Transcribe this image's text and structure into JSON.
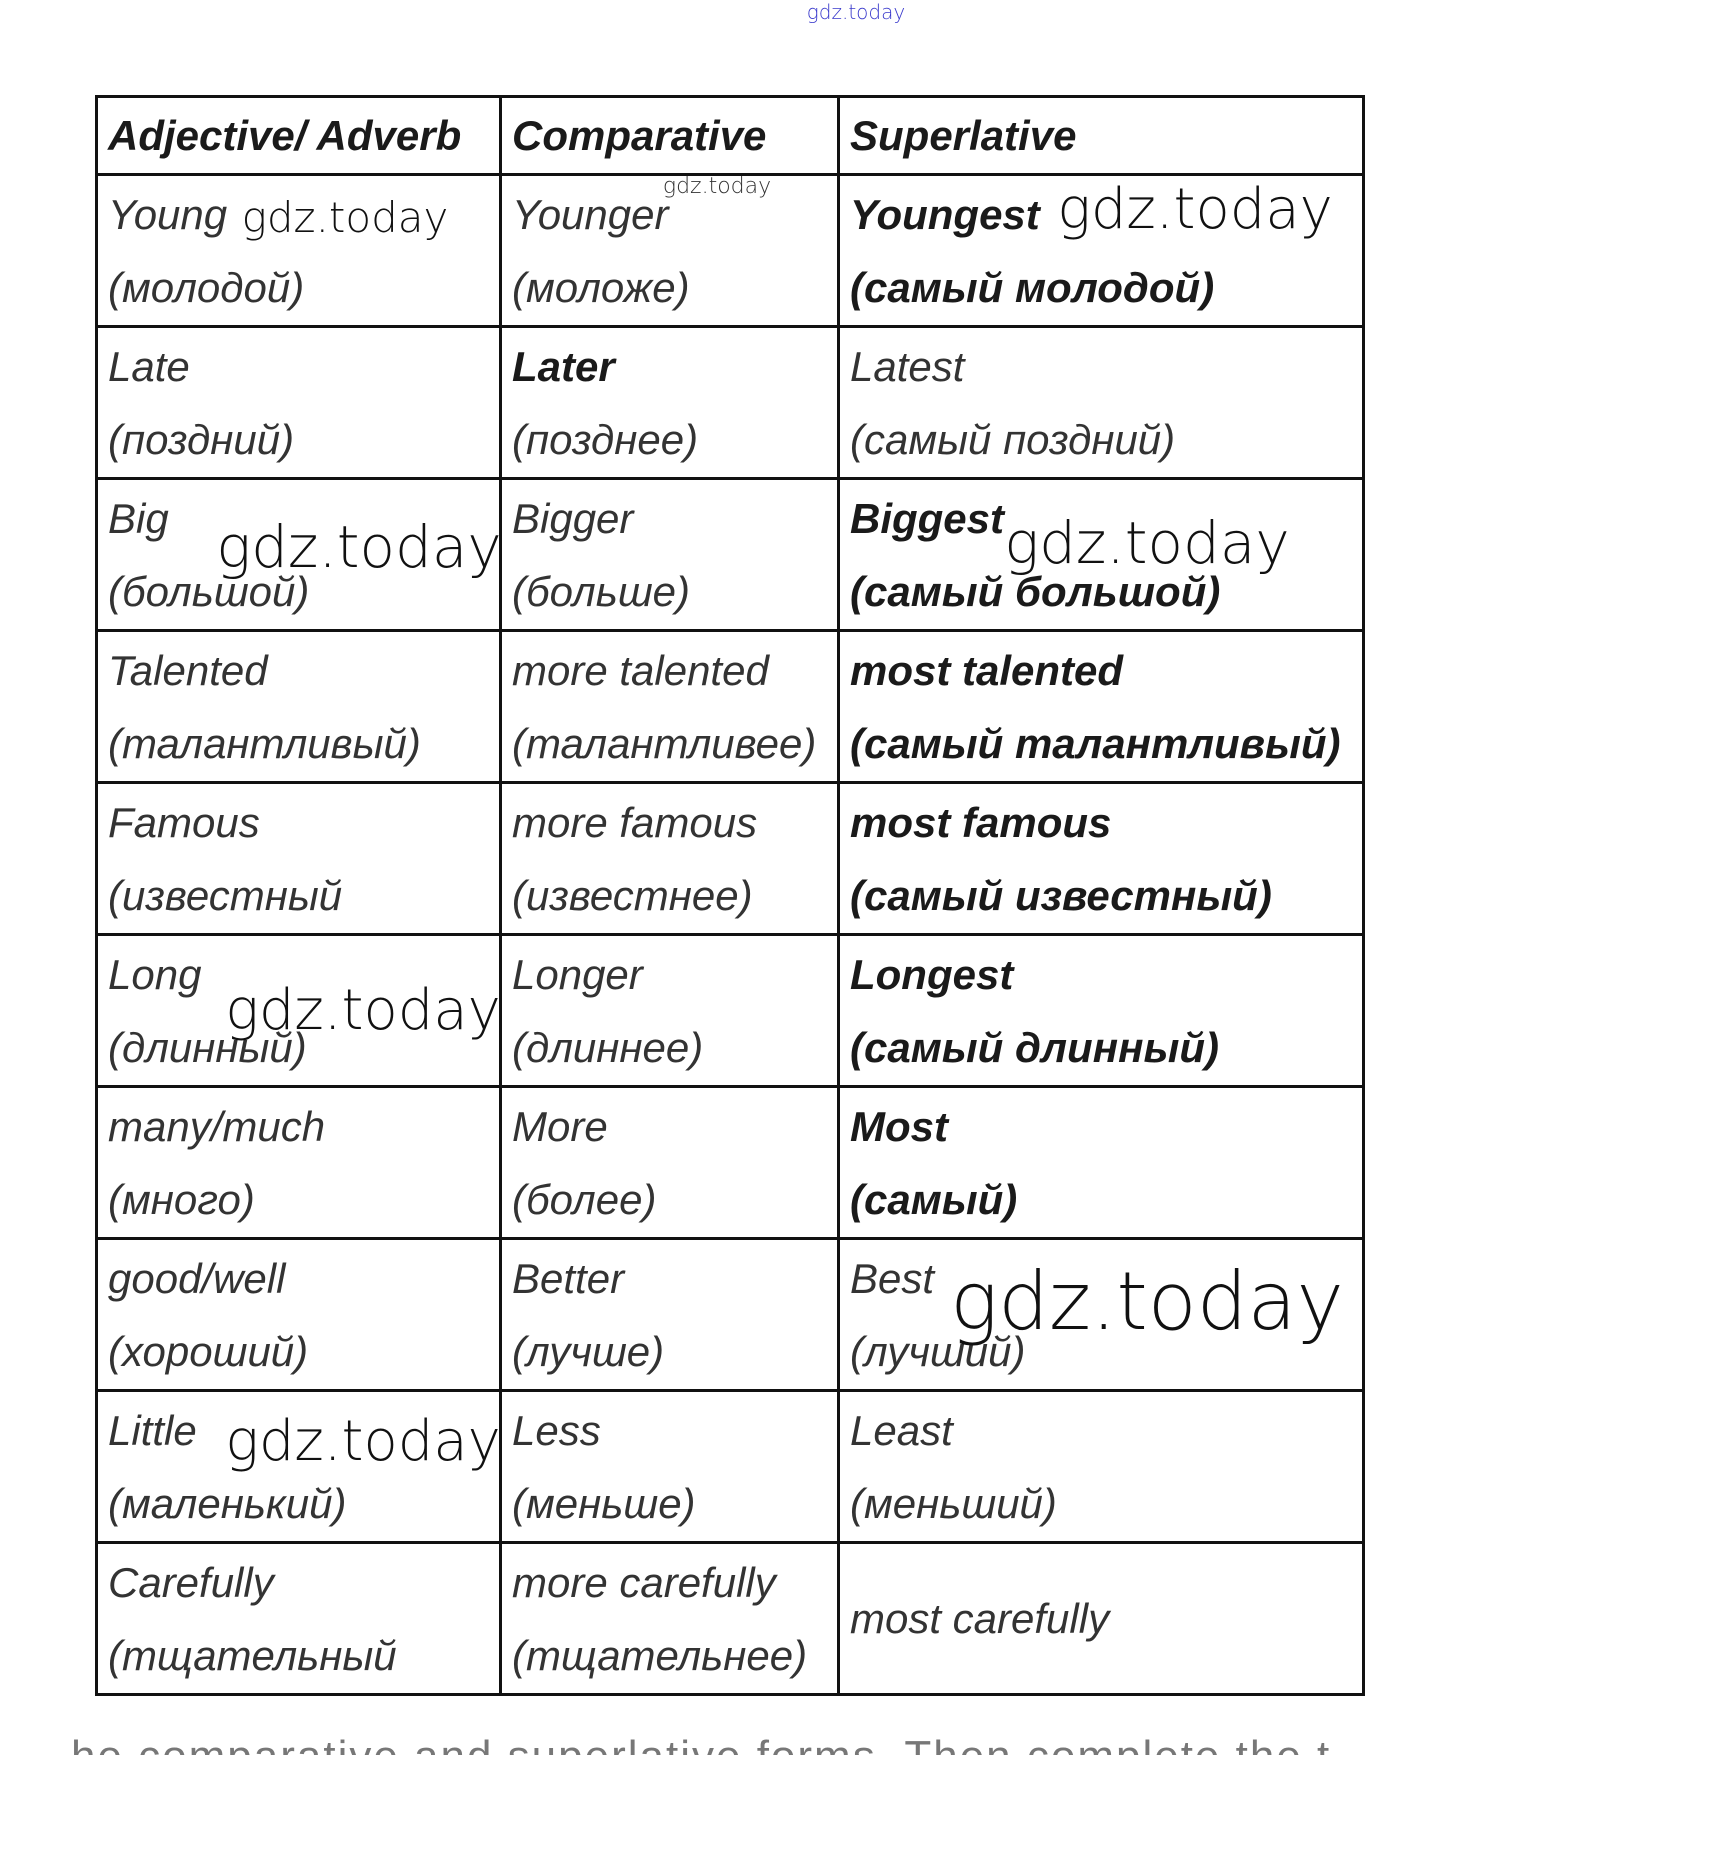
{
  "watermarks": [
    "gdz.today",
    "gdz.today",
    "gdz.today",
    "gdz.today",
    "gdz.today",
    "gdz.today",
    "gdz.today",
    "gdz.today",
    "gdz.today"
  ],
  "table": {
    "header": [
      "Adjective/ Adverb",
      "Comparative",
      "Superlative"
    ],
    "rows": [
      [
        [
          "Young",
          "(молодой)"
        ],
        [
          "Younger",
          "(моложе)"
        ],
        [
          "Youngest",
          "(самый молодой)"
        ]
      ],
      [
        [
          "Late",
          "(поздний)"
        ],
        [
          "Later",
          "(позднее)"
        ],
        [
          "Latest",
          "(самый поздний)"
        ]
      ],
      [
        [
          "Big",
          "(большой)"
        ],
        [
          "Bigger",
          "(больше)"
        ],
        [
          "Biggest",
          "(самый большой)"
        ]
      ],
      [
        [
          "Talented",
          "(талантливый)"
        ],
        [
          "more talented",
          "(талантливее)"
        ],
        [
          "most talented",
          "(самый талантливый)"
        ]
      ],
      [
        [
          "Famous",
          "(известный"
        ],
        [
          "more famous",
          "(известнее)"
        ],
        [
          "most famous",
          "(самый известный)"
        ]
      ],
      [
        [
          "Long",
          "(длинный)"
        ],
        [
          "Longer",
          "(длиннее)"
        ],
        [
          "Longest",
          "(самый длинный)"
        ]
      ],
      [
        [
          "many/much",
          "(много)"
        ],
        [
          "More",
          "(более)"
        ],
        [
          "Most",
          "(самый)"
        ]
      ],
      [
        [
          "good/well",
          "(хороший)"
        ],
        [
          "Better",
          "(лучше)"
        ],
        [
          "Best",
          "(лучший)"
        ]
      ],
      [
        [
          "Little",
          "(маленький)"
        ],
        [
          "Less",
          "(меньше)"
        ],
        [
          "Least",
          "(меньший)"
        ]
      ],
      [
        [
          "Carefully",
          "(тщательный"
        ],
        [
          "more carefully",
          "(тщательнее)"
        ],
        [
          "most carefully"
        ]
      ]
    ]
  },
  "footer_text": "he comparative and superlative forms. Then complete the t"
}
